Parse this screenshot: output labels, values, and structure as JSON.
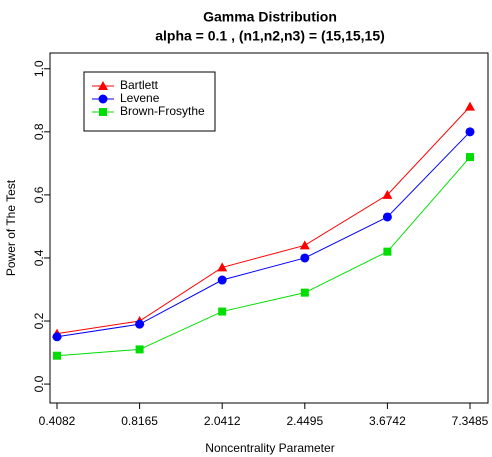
{
  "chart_data": {
    "type": "line",
    "title": "Gamma Distribution",
    "subtitle": "alpha = 0.1 , (n1,n2,n3) = (15,15,15)",
    "x_label": "Noncentrality Parameter",
    "y_label": "Power of The Test",
    "categories": [
      "0.4082",
      "0.8165",
      "2.0412",
      "2.4495",
      "3.6742",
      "7.3485"
    ],
    "series": [
      {
        "name": "Bartlett",
        "color": "#ff0000",
        "marker": "triangle",
        "values": [
          0.16,
          0.2,
          0.37,
          0.44,
          0.6,
          0.88
        ]
      },
      {
        "name": "Levene",
        "color": "#0000ff",
        "marker": "circle",
        "values": [
          0.15,
          0.19,
          0.33,
          0.4,
          0.53,
          0.8
        ]
      },
      {
        "name": "Brown-Frosythe",
        "color": "#00dd00",
        "marker": "square",
        "values": [
          0.09,
          0.11,
          0.23,
          0.29,
          0.42,
          0.72
        ]
      }
    ],
    "ylim": [
      -0.06,
      1.05
    ],
    "yticks": [
      {
        "value": 0,
        "label": "0.0"
      },
      0.2,
      0.4,
      0.6,
      0.8,
      {
        "value": 1,
        "label": "1.0"
      }
    ],
    "legend": "top-left",
    "grid": false
  }
}
